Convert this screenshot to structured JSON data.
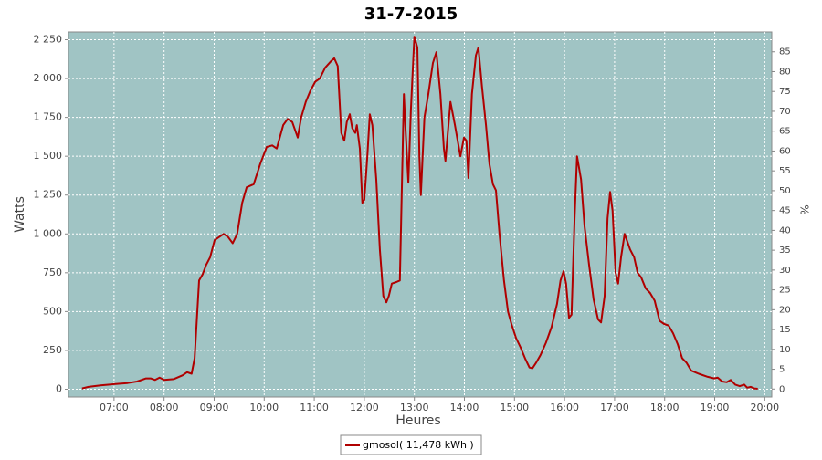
{
  "chart_data": {
    "type": "line",
    "title": "31-7-2015",
    "xlabel": "Heures",
    "ylabel": "Watts",
    "y2label": "%",
    "x": [
      6.36,
      6.49,
      6.6,
      6.73,
      6.91,
      7.09,
      7.27,
      7.46,
      7.64,
      7.73,
      7.82,
      7.91,
      8.0,
      8.19,
      8.37,
      8.46,
      8.55,
      8.61,
      8.7,
      8.77,
      8.84,
      8.92,
      9.01,
      9.19,
      9.28,
      9.37,
      9.46,
      9.56,
      9.65,
      9.79,
      9.92,
      10.05,
      10.16,
      10.25,
      10.38,
      10.47,
      10.56,
      10.67,
      10.74,
      10.83,
      10.92,
      11.02,
      11.11,
      11.22,
      11.33,
      11.4,
      11.47,
      11.54,
      11.6,
      11.65,
      11.71,
      11.76,
      11.82,
      11.85,
      11.91,
      11.96,
      12.0,
      12.06,
      12.11,
      12.16,
      12.24,
      12.31,
      12.38,
      12.44,
      12.49,
      12.55,
      12.64,
      12.71,
      12.79,
      12.82,
      12.88,
      12.93,
      13.0,
      13.06,
      13.1,
      13.13,
      13.2,
      13.28,
      13.37,
      13.44,
      13.52,
      13.59,
      13.62,
      13.72,
      13.81,
      13.92,
      13.99,
      14.04,
      14.08,
      14.15,
      14.23,
      14.28,
      14.35,
      14.43,
      14.5,
      14.57,
      14.63,
      14.7,
      14.79,
      14.87,
      14.94,
      15.03,
      15.12,
      15.21,
      15.3,
      15.36,
      15.43,
      15.52,
      15.63,
      15.74,
      15.85,
      15.92,
      15.98,
      16.03,
      16.09,
      16.14,
      16.2,
      16.25,
      16.33,
      16.4,
      16.49,
      16.58,
      16.67,
      16.73,
      16.8,
      16.86,
      16.91,
      16.96,
      17.02,
      17.07,
      17.13,
      17.2,
      17.31,
      17.39,
      17.46,
      17.53,
      17.62,
      17.71,
      17.8,
      17.9,
      17.99,
      18.08,
      18.17,
      18.26,
      18.35,
      18.44,
      18.53,
      18.68,
      18.86,
      18.99,
      19.06,
      19.15,
      19.24,
      19.32,
      19.41,
      19.5,
      19.59,
      19.65,
      19.72,
      19.79,
      19.86
    ],
    "series": [
      {
        "name": "gmosol( 11,478 kWh )",
        "color": "#b00000",
        "values": [
          5,
          15,
          20,
          25,
          30,
          35,
          40,
          50,
          70,
          70,
          60,
          75,
          60,
          65,
          90,
          110,
          100,
          200,
          700,
          740,
          800,
          850,
          960,
          1000,
          980,
          940,
          1000,
          1200,
          1300,
          1320,
          1450,
          1560,
          1570,
          1550,
          1700,
          1740,
          1720,
          1620,
          1750,
          1850,
          1920,
          1980,
          2000,
          2070,
          2110,
          2130,
          2080,
          1650,
          1600,
          1720,
          1770,
          1680,
          1650,
          1700,
          1550,
          1200,
          1220,
          1500,
          1770,
          1700,
          1350,
          900,
          600,
          560,
          600,
          680,
          690,
          700,
          1900,
          1700,
          1330,
          1800,
          2270,
          2200,
          1500,
          1250,
          1750,
          1900,
          2100,
          2170,
          1900,
          1550,
          1470,
          1850,
          1700,
          1500,
          1620,
          1600,
          1360,
          1900,
          2150,
          2200,
          1950,
          1700,
          1450,
          1320,
          1280,
          1000,
          700,
          500,
          420,
          330,
          270,
          200,
          140,
          135,
          170,
          220,
          300,
          400,
          550,
          700,
          760,
          680,
          460,
          480,
          1100,
          1500,
          1350,
          1050,
          800,
          580,
          450,
          430,
          600,
          1100,
          1270,
          1150,
          750,
          680,
          850,
          1000,
          900,
          850,
          750,
          720,
          650,
          620,
          570,
          440,
          420,
          410,
          360,
          290,
          200,
          170,
          120,
          100,
          80,
          70,
          75,
          50,
          45,
          60,
          30,
          20,
          30,
          10,
          15,
          5,
          3
        ]
      }
    ],
    "xlim": [
      6.09,
      20.14
    ],
    "xticks": [
      {
        "value": 7,
        "label": "07:00"
      },
      {
        "value": 8,
        "label": "08:00"
      },
      {
        "value": 9,
        "label": "09:00"
      },
      {
        "value": 10,
        "label": "10:00"
      },
      {
        "value": 11,
        "label": "11:00"
      },
      {
        "value": 12,
        "label": "12:00"
      },
      {
        "value": 13,
        "label": "13:00"
      },
      {
        "value": 14,
        "label": "14:00"
      },
      {
        "value": 15,
        "label": "15:00"
      },
      {
        "value": 16,
        "label": "16:00"
      },
      {
        "value": 17,
        "label": "17:00"
      },
      {
        "value": 18,
        "label": "18:00"
      },
      {
        "value": 19,
        "label": "19:00"
      },
      {
        "value": 20,
        "label": "20:00"
      }
    ],
    "ylim": [
      -50,
      2300
    ],
    "yticks": [
      0,
      250,
      500,
      750,
      {
        "value": 1000,
        "label": "1 000"
      },
      {
        "value": 1250,
        "label": "1 250"
      },
      {
        "value": 1500,
        "label": "1 500"
      },
      {
        "value": 1750,
        "label": "1 750"
      },
      {
        "value": 2000,
        "label": "2 000"
      },
      {
        "value": 2250,
        "label": "2 250"
      }
    ],
    "y2lim": [
      -2,
      90
    ],
    "y2ticks": [
      0,
      5,
      10,
      15,
      20,
      25,
      30,
      35,
      40,
      45,
      50,
      55,
      60,
      65,
      70,
      75,
      80,
      85
    ],
    "grid": true,
    "legend": "bottom",
    "background": "#a0c4c4"
  }
}
